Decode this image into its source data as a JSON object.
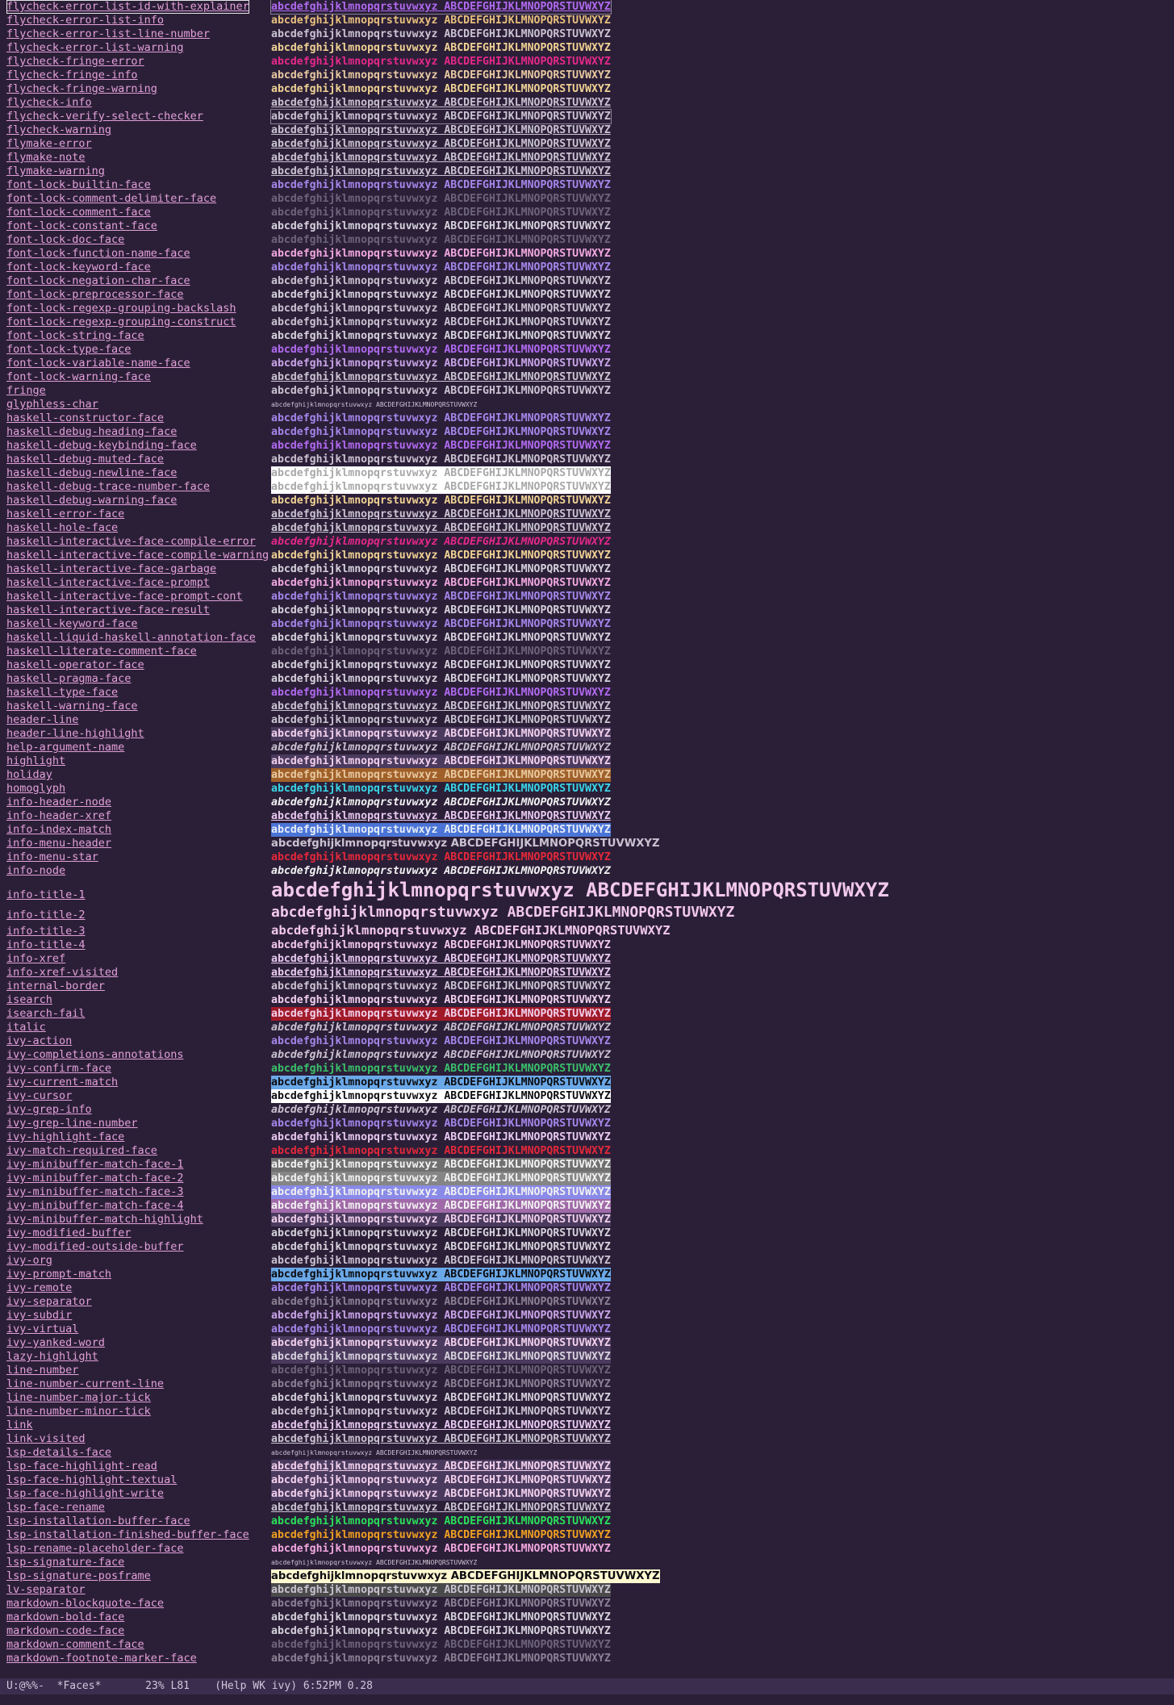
{
  "sample_text": "abcdefghijklmnopqrstuvwxyz ABCDEFGHIJKLMNOPQRSTUVWXYZ",
  "faces": [
    {
      "name": "flycheck-error-list-id-with-explainer",
      "fg": "#b16af0",
      "ul": true,
      "box": true
    },
    {
      "name": "flycheck-error-list-info",
      "fg": "#e8c07d"
    },
    {
      "name": "flycheck-error-list-line-number",
      "fg": "#c9c3d1"
    },
    {
      "name": "flycheck-error-list-warning",
      "fg": "#f1d394"
    },
    {
      "name": "flycheck-fringe-error",
      "fg": "#e6288a"
    },
    {
      "name": "flycheck-fringe-info",
      "fg": "#e8c9a0"
    },
    {
      "name": "flycheck-fringe-warning",
      "fg": "#f1d394"
    },
    {
      "name": "flycheck-info",
      "fg": "#c9c3d1",
      "ul": true
    },
    {
      "name": "flycheck-verify-select-checker",
      "fg": "#c9c3d1",
      "box": true
    },
    {
      "name": "flycheck-warning",
      "fg": "#c9c3d1",
      "ul": true
    },
    {
      "name": "flymake-error",
      "fg": "#c9c3d1",
      "ul": true
    },
    {
      "name": "flymake-note",
      "fg": "#c9c3d1",
      "ul": true
    },
    {
      "name": "flymake-warning",
      "fg": "#c9c3d1",
      "ul": true
    },
    {
      "name": "font-lock-builtin-face",
      "fg": "#a586ea"
    },
    {
      "name": "font-lock-comment-delimiter-face",
      "fg": "#6c6479"
    },
    {
      "name": "font-lock-comment-face",
      "fg": "#6c6479"
    },
    {
      "name": "font-lock-constant-face",
      "fg": "#d6d2dc"
    },
    {
      "name": "font-lock-doc-face",
      "fg": "#6c6479"
    },
    {
      "name": "font-lock-function-name-face",
      "fg": "#f2a8e0"
    },
    {
      "name": "font-lock-keyword-face",
      "fg": "#a586ea"
    },
    {
      "name": "font-lock-negation-char-face",
      "fg": "#c9c3d1"
    },
    {
      "name": "font-lock-preprocessor-face",
      "fg": "#d6d2dc"
    },
    {
      "name": "font-lock-regexp-grouping-backslash",
      "fg": "#c9c3d1"
    },
    {
      "name": "font-lock-regexp-grouping-construct",
      "fg": "#c9c3d1"
    },
    {
      "name": "font-lock-string-face",
      "fg": "#d6d2dc"
    },
    {
      "name": "font-lock-type-face",
      "fg": "#b16af0"
    },
    {
      "name": "font-lock-variable-name-face",
      "fg": "#c9a4e8"
    },
    {
      "name": "font-lock-warning-face",
      "fg": "#c9c3d1",
      "ul": true
    },
    {
      "name": "fringe",
      "fg": "#c9c3d1"
    },
    {
      "name": "glyphless-char",
      "fg": "#c9c3d1",
      "tiny": true
    },
    {
      "name": "haskell-constructor-face",
      "fg": "#a586ea"
    },
    {
      "name": "haskell-debug-heading-face",
      "fg": "#a586ea"
    },
    {
      "name": "haskell-debug-keybinding-face",
      "fg": "#b16af0"
    },
    {
      "name": "haskell-debug-muted-face",
      "fg": "#c9c3d1"
    },
    {
      "name": "haskell-debug-newline-face",
      "fg": "#a8a8a8",
      "bg": "#ffffff"
    },
    {
      "name": "haskell-debug-trace-number-face",
      "fg": "#a8a8a8",
      "bg": "#ffffff"
    },
    {
      "name": "haskell-debug-warning-face",
      "fg": "#f1d394"
    },
    {
      "name": "haskell-error-face",
      "fg": "#c9c3d1",
      "ul": true
    },
    {
      "name": "haskell-hole-face",
      "fg": "#c9c3d1",
      "ul": true
    },
    {
      "name": "haskell-interactive-face-compile-error",
      "fg": "#e6288a",
      "it": true
    },
    {
      "name": "haskell-interactive-face-compile-warning",
      "fg": "#f1d394"
    },
    {
      "name": "haskell-interactive-face-garbage",
      "fg": "#d6d2dc"
    },
    {
      "name": "haskell-interactive-face-prompt",
      "fg": "#f2a8e0"
    },
    {
      "name": "haskell-interactive-face-prompt-cont",
      "fg": "#a586ea"
    },
    {
      "name": "haskell-interactive-face-result",
      "fg": "#d6d2dc"
    },
    {
      "name": "haskell-keyword-face",
      "fg": "#a586ea"
    },
    {
      "name": "haskell-liquid-haskell-annotation-face",
      "fg": "#d6d2dc"
    },
    {
      "name": "haskell-literate-comment-face",
      "fg": "#6c6479"
    },
    {
      "name": "haskell-operator-face",
      "fg": "#d6d2dc"
    },
    {
      "name": "haskell-pragma-face",
      "fg": "#d6d2dc"
    },
    {
      "name": "haskell-type-face",
      "fg": "#b16af0"
    },
    {
      "name": "haskell-warning-face",
      "fg": "#c9c3d1",
      "ul": true
    },
    {
      "name": "header-line",
      "fg": "#c9c3d1"
    },
    {
      "name": "header-line-highlight",
      "fg": "#f2d0ec",
      "bg": "#4a3a5e"
    },
    {
      "name": "help-argument-name",
      "fg": "#c9c3d1",
      "it": true
    },
    {
      "name": "highlight",
      "fg": "#f2d0ec",
      "bg": "#4a3a5e"
    },
    {
      "name": "holiday",
      "fg": "#e8c9a0",
      "bg": "#a0602a"
    },
    {
      "name": "homoglyph",
      "fg": "#3ad6e8"
    },
    {
      "name": "info-header-node",
      "fg": "#f2f2f2",
      "it": true
    },
    {
      "name": "info-header-xref",
      "fg": "#e8c9f0",
      "ul": true
    },
    {
      "name": "info-index-match",
      "fg": "#e8eef8",
      "bg": "#4a74d6"
    },
    {
      "name": "info-menu-header",
      "fg": "#c9c3d1",
      "sans": true
    },
    {
      "name": "info-menu-star",
      "fg": "#e6283a"
    },
    {
      "name": "info-node",
      "fg": "#f2f2f2",
      "it": true
    },
    {
      "name": "info-title-1",
      "fg": "#f2c8ec",
      "size": "big1"
    },
    {
      "name": "info-title-2",
      "fg": "#f2c8ec",
      "size": "big2"
    },
    {
      "name": "info-title-3",
      "fg": "#f2c8ec",
      "size": "big3"
    },
    {
      "name": "info-title-4",
      "fg": "#f2c8ec"
    },
    {
      "name": "info-xref",
      "fg": "#e8c9f0",
      "ul": true
    },
    {
      "name": "info-xref-visited",
      "fg": "#e8c9f0",
      "ul": true
    },
    {
      "name": "internal-border",
      "fg": "#c9c3d1"
    },
    {
      "name": "isearch",
      "fg": "#f2d0ec",
      "bg": "#2b1f38"
    },
    {
      "name": "isearch-fail",
      "fg": "#f2d0ec",
      "bg": "#a01a28"
    },
    {
      "name": "italic",
      "fg": "#c9c3d1",
      "it": true
    },
    {
      "name": "ivy-action",
      "fg": "#a586ea"
    },
    {
      "name": "ivy-completions-annotations",
      "fg": "#c9c3d1",
      "it": true
    },
    {
      "name": "ivy-confirm-face",
      "fg": "#3ac06a"
    },
    {
      "name": "ivy-current-match",
      "fg": "#0c0c10",
      "bg": "#6aa8e8"
    },
    {
      "name": "ivy-cursor",
      "fg": "#0c0c10",
      "bg": "#ffffff"
    },
    {
      "name": "ivy-grep-info",
      "fg": "#c9c3d1",
      "it": true
    },
    {
      "name": "ivy-grep-line-number",
      "fg": "#a586ea"
    },
    {
      "name": "ivy-highlight-face",
      "fg": "#e8c9f0"
    },
    {
      "name": "ivy-match-required-face",
      "fg": "#e6283a"
    },
    {
      "name": "ivy-minibuffer-match-face-1",
      "fg": "#f2f2f2",
      "bg": "#707070"
    },
    {
      "name": "ivy-minibuffer-match-face-2",
      "fg": "#f2f2f2",
      "bg": "#858585"
    },
    {
      "name": "ivy-minibuffer-match-face-3",
      "fg": "#f2f2f2",
      "bg": "#8a8ae8"
    },
    {
      "name": "ivy-minibuffer-match-face-4",
      "fg": "#f2f2f2",
      "bg": "#a06aa8"
    },
    {
      "name": "ivy-minibuffer-match-highlight",
      "fg": "#f2d0ec",
      "bg": "#4a3a5e"
    },
    {
      "name": "ivy-modified-buffer",
      "fg": "#d6d2dc"
    },
    {
      "name": "ivy-modified-outside-buffer",
      "fg": "#d6d2dc"
    },
    {
      "name": "ivy-org",
      "fg": "#c9c3d1"
    },
    {
      "name": "ivy-prompt-match",
      "fg": "#0c0c10",
      "bg": "#6aa8e8"
    },
    {
      "name": "ivy-remote",
      "fg": "#a586ea"
    },
    {
      "name": "ivy-separator",
      "fg": "#8a8294"
    },
    {
      "name": "ivy-subdir",
      "fg": "#c9a4e8"
    },
    {
      "name": "ivy-virtual",
      "fg": "#a586ea"
    },
    {
      "name": "ivy-yanked-word",
      "fg": "#f2d0ec",
      "bg": "#4a3a5e"
    },
    {
      "name": "lazy-highlight",
      "fg": "#d6d2dc",
      "bg": "#4a3a5e"
    },
    {
      "name": "line-number",
      "fg": "#6c6479"
    },
    {
      "name": "line-number-current-line",
      "fg": "#8a8294"
    },
    {
      "name": "line-number-major-tick",
      "fg": "#d6d2dc"
    },
    {
      "name": "line-number-minor-tick",
      "fg": "#c9c3d1"
    },
    {
      "name": "link",
      "fg": "#e8c9f0",
      "ul": true
    },
    {
      "name": "link-visited",
      "fg": "#c9c3d1",
      "ul": true
    },
    {
      "name": "lsp-details-face",
      "fg": "#c9c3d1",
      "tiny": true
    },
    {
      "name": "lsp-face-highlight-read",
      "fg": "#f2d0ec",
      "bg": "#4a3a5e",
      "ul": true
    },
    {
      "name": "lsp-face-highlight-textual",
      "fg": "#f2d0ec",
      "bg": "#4a3a5e"
    },
    {
      "name": "lsp-face-highlight-write",
      "fg": "#f2d0ec",
      "bg": "#4a3a5e"
    },
    {
      "name": "lsp-face-rename",
      "fg": "#c9c3d1",
      "ul": true
    },
    {
      "name": "lsp-installation-buffer-face",
      "fg": "#2ae05a"
    },
    {
      "name": "lsp-installation-finished-buffer-face",
      "fg": "#f0a020"
    },
    {
      "name": "lsp-rename-placeholder-face",
      "fg": "#f2a8e0"
    },
    {
      "name": "lsp-signature-face",
      "fg": "#c9c3d1",
      "tiny": true
    },
    {
      "name": "lsp-signature-posframe",
      "fg": "#0c0c10",
      "bg": "#fff8d0",
      "sans": true
    },
    {
      "name": "lv-separator",
      "fg": "#c9c3d1",
      "bg": "#4a4a4a"
    },
    {
      "name": "markdown-blockquote-face",
      "fg": "#8a8294"
    },
    {
      "name": "markdown-bold-face",
      "fg": "#d6d2dc"
    },
    {
      "name": "markdown-code-face",
      "fg": "#d6d2dc"
    },
    {
      "name": "markdown-comment-face",
      "fg": "#6c6479"
    },
    {
      "name": "markdown-footnote-marker-face",
      "fg": "#8a8294"
    }
  ],
  "mode_line": "U:@%%-  *Faces*       23% L81    (Help WK ivy) 6:52PM 0.28"
}
